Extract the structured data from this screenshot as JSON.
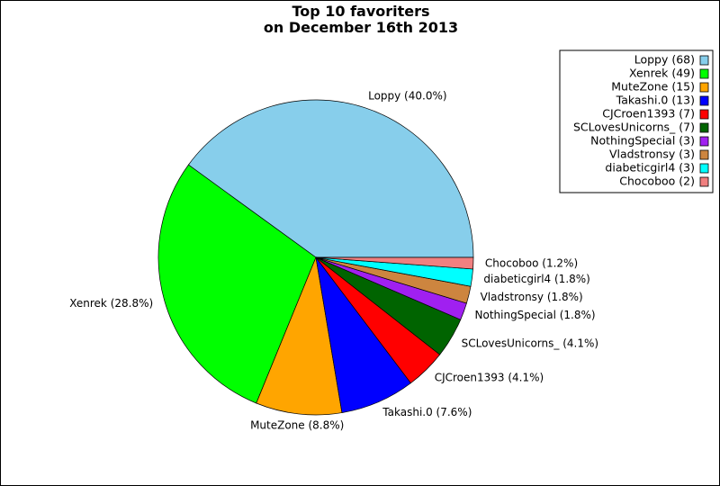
{
  "chart_data": {
    "type": "pie",
    "title": "Top 10 favoriters",
    "subtitle": "on December 16th 2013",
    "legend_position": "top-right",
    "slices": [
      {
        "name": "Loppy",
        "count": 68,
        "percent": 40.0,
        "label": "Loppy (40.0%)",
        "legend": "Loppy (68)",
        "color": "#87ceeb"
      },
      {
        "name": "Xenrek",
        "count": 49,
        "percent": 28.8,
        "label": "Xenrek (28.8%)",
        "legend": "Xenrek (49)",
        "color": "#00ff00"
      },
      {
        "name": "MuteZone",
        "count": 15,
        "percent": 8.8,
        "label": "MuteZone (8.8%)",
        "legend": "MuteZone (15)",
        "color": "#ffa500"
      },
      {
        "name": "Takashi.0",
        "count": 13,
        "percent": 7.6,
        "label": "Takashi.0 (7.6%)",
        "legend": "Takashi.0 (13)",
        "color": "#0000ff"
      },
      {
        "name": "CJCroen1393",
        "count": 7,
        "percent": 4.1,
        "label": "CJCroen1393 (4.1%)",
        "legend": "CJCroen1393 (7)",
        "color": "#ff0000"
      },
      {
        "name": "SCLovesUnicorns_",
        "count": 7,
        "percent": 4.1,
        "label": "SCLovesUnicorns_ (4.1%)",
        "legend": "SCLovesUnicorns_ (7)",
        "color": "#006400"
      },
      {
        "name": "NothingSpecial",
        "count": 3,
        "percent": 1.8,
        "label": "NothingSpecial (1.8%)",
        "legend": "NothingSpecial (3)",
        "color": "#a020f0"
      },
      {
        "name": "Vladstronsy",
        "count": 3,
        "percent": 1.8,
        "label": "Vladstronsy (1.8%)",
        "legend": "Vladstronsy (3)",
        "color": "#cd853f"
      },
      {
        "name": "diabeticgirl4",
        "count": 3,
        "percent": 1.8,
        "label": "diabeticgirl4 (1.8%)",
        "legend": "diabeticgirl4 (3)",
        "color": "#00ffff"
      },
      {
        "name": "Chocoboo",
        "count": 2,
        "percent": 1.2,
        "label": "Chocoboo (1.2%)",
        "legend": "Chocoboo (2)",
        "color": "#f08080"
      }
    ]
  }
}
